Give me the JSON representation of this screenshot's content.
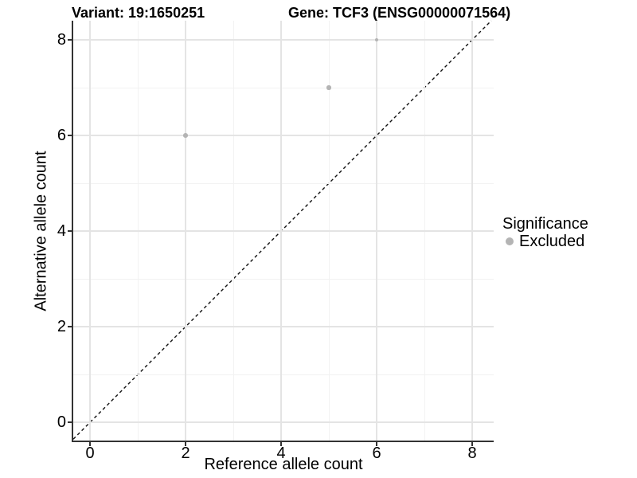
{
  "chart_data": {
    "type": "scatter",
    "title_left": "Variant: 19:1650251",
    "title_right": "Gene: TCF3 (ENSG00000071564)",
    "xlabel": "Reference allele count",
    "ylabel": "Alternative allele count",
    "xlim": [
      -0.35,
      8.45
    ],
    "ylim": [
      -0.38,
      8.4
    ],
    "xticks": [
      0,
      2,
      4,
      6,
      8
    ],
    "yticks": [
      0,
      2,
      4,
      6,
      8
    ],
    "xminor": [
      1,
      3,
      5,
      7
    ],
    "yminor": [
      1,
      3,
      5,
      7
    ],
    "grid": true,
    "series": [
      {
        "name": "Excluded",
        "color": "#b4b4b4",
        "points": [
          {
            "x": 2,
            "y": 6,
            "r": 2.8
          },
          {
            "x": 5,
            "y": 7,
            "r": 2.6
          },
          {
            "x": 6,
            "y": 8,
            "r": 2.2
          }
        ]
      }
    ],
    "annotations": [
      {
        "type": "abline",
        "slope": 1,
        "intercept": 0,
        "style": "dashed",
        "color": "#111111"
      }
    ],
    "legend": {
      "title": "Significance",
      "position": "right",
      "entries": [
        {
          "label": "Excluded",
          "color": "#b4b4b4"
        }
      ]
    }
  },
  "colors": {
    "axis_line": "#333333",
    "tick_mark": "#333333",
    "grid_major": "#e4e4e4",
    "grid_minor": "#f2f2f2",
    "background": "#ffffff"
  }
}
